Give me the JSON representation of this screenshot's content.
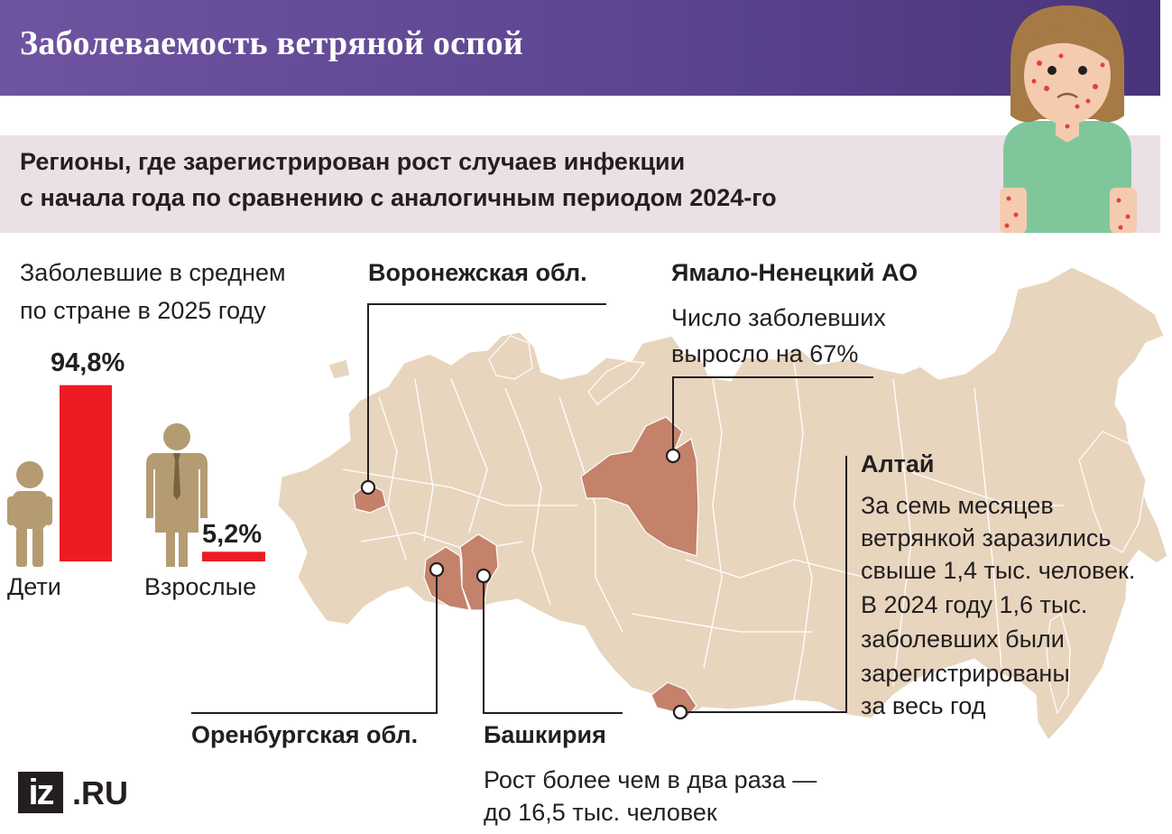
{
  "header": {
    "title": "Заболеваемость ветряной оспой"
  },
  "subtitle": {
    "line1": "Регионы, где зарегистрирован рост случаев инфекции",
    "line2": "с начала года по сравнению с аналогичным периодом 2024-го"
  },
  "chart_data": {
    "type": "bar",
    "title": "Заболевшие в среднем по стране в 2025 году",
    "title_lines": [
      "Заболевшие в среднем",
      "по стране в 2025 году"
    ],
    "categories": [
      "Дети",
      "Взрослые"
    ],
    "values": [
      94.8,
      5.2
    ],
    "value_labels": [
      "94,8%",
      "5,2%"
    ],
    "unit": "%",
    "ylim": [
      0,
      100
    ],
    "bar_color": "#ed1c24"
  },
  "regions": {
    "voronezh": {
      "name": "Воронежская обл."
    },
    "yamal": {
      "name": "Ямало-Ненецкий АО",
      "note_lines": [
        "Число заболевших",
        "выросло на 67%"
      ]
    },
    "altai": {
      "name": "Алтай",
      "note_lines": [
        "За семь месяцев",
        "ветрянкой заразились",
        "свыше 1,4 тыс. человек.",
        "В 2024 году 1,6 тыс.",
        "заболевших были",
        "зарегистрированы",
        "за весь год"
      ]
    },
    "orenburg": {
      "name": "Оренбургская обл."
    },
    "bashkiria": {
      "name": "Башкирия",
      "note_lines": [
        "Рост более чем в два раза —",
        "до 16,5 тыс. человек"
      ]
    }
  },
  "colors": {
    "header_bg": "#5d4591",
    "subtitle_bg": "#ebe0e6",
    "map_fill": "#e8d5be",
    "highlight_fill": "#c4826a",
    "figure_color": "#b59b72",
    "bar": "#ed1c24"
  },
  "logo": {
    "iz": "iz",
    "ru": ".RU"
  },
  "icons": {
    "child": "child-icon",
    "adult": "adult-icon",
    "sick_girl": "sick-girl-illustration"
  }
}
